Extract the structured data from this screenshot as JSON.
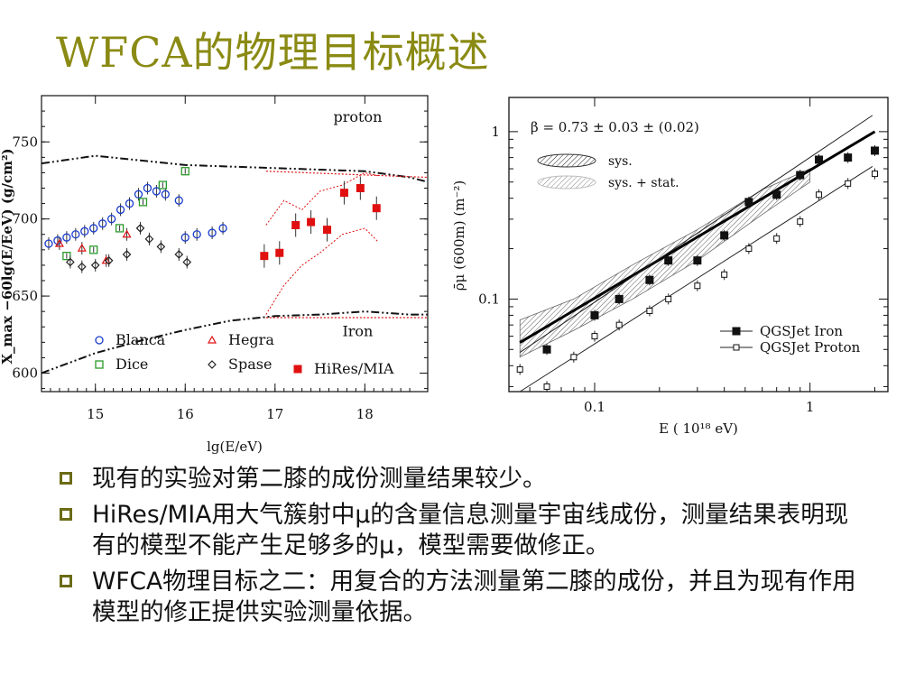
{
  "slide": {
    "title": "WFCA的物理目标概述"
  },
  "bullets": [
    {
      "text": "现有的实验对第二膝的成份测量结果较少。"
    },
    {
      "text": "HiRes/MIA用大气簇射中μ的含量信息测量宇宙线成份，测量结果表明现有的模型不能产生足够多的μ，模型需要做修正。"
    },
    {
      "text": "WFCA物理目标之二：用复合的方法测量第二膝的成份，并且为现有作用模型的修正提供实验测量依据。"
    }
  ],
  "colors": {
    "title": "#8a8a14",
    "bullet_box": "#6b6b16",
    "blue": "#1a3ccc",
    "green": "#2a9a2a",
    "red": "#e01010"
  },
  "chart_data": [
    {
      "type": "scatter",
      "xlabel": "lg(E/eV)",
      "ylabel": "X_max −60lg(E/EeV)  (g/cm²)",
      "xlim": [
        14.4,
        18.7
      ],
      "ylim": [
        588,
        780
      ],
      "xticks": [
        "15",
        "16",
        "17",
        "18"
      ],
      "yticks": [
        "600",
        "650",
        "700",
        "750"
      ],
      "annotations": [
        "proton",
        "Iron"
      ],
      "legend": [
        {
          "name": "Blanca",
          "marker": "circle",
          "color": "#1a3ccc"
        },
        {
          "name": "Hegra",
          "marker": "triangle",
          "color": "#e01010"
        },
        {
          "name": "Dice",
          "marker": "square",
          "color": "#2a9a2a"
        },
        {
          "name": "Spase",
          "marker": "diamond",
          "color": "#222222"
        },
        {
          "name": "HiRes/MIA",
          "marker": "filled-square",
          "color": "#e01010"
        }
      ],
      "lines": [
        {
          "name": "proton",
          "x": [
            14.4,
            15.0,
            15.5,
            16.0,
            16.5,
            17.0,
            17.5,
            18.0,
            18.5,
            18.7
          ],
          "y": [
            736,
            741,
            738,
            735,
            734,
            733,
            732,
            731,
            727,
            724
          ]
        },
        {
          "name": "Iron",
          "x": [
            14.4,
            15.0,
            15.5,
            16.0,
            16.5,
            17.0,
            17.5,
            18.0,
            18.5,
            18.7
          ],
          "y": [
            600,
            613,
            621,
            628,
            634,
            637,
            638,
            640,
            638,
            638
          ]
        }
      ],
      "series": [
        {
          "name": "Blanca",
          "x": [
            14.48,
            14.58,
            14.68,
            14.78,
            14.88,
            14.98,
            15.08,
            15.18,
            15.28,
            15.38,
            15.48,
            15.58,
            15.68,
            15.78,
            15.93,
            16.0,
            16.13,
            16.3,
            16.42
          ],
          "y": [
            684,
            686,
            688,
            690,
            692,
            694,
            697,
            700,
            706,
            710,
            716,
            720,
            718,
            716,
            712,
            688,
            690,
            691,
            694
          ]
        },
        {
          "name": "Hegra",
          "x": [
            14.6,
            14.85,
            15.12,
            15.35
          ],
          "y": [
            684,
            681,
            673,
            690
          ]
        },
        {
          "name": "Dice",
          "x": [
            14.68,
            14.98,
            15.27,
            15.53,
            15.75,
            16.0
          ],
          "y": [
            676,
            680,
            694,
            711,
            722,
            731
          ]
        },
        {
          "name": "Spase",
          "x": [
            14.72,
            14.85,
            15.0,
            15.15,
            15.35,
            15.5,
            15.6,
            15.73,
            15.93,
            16.02
          ],
          "y": [
            672,
            669,
            670,
            673,
            677,
            694,
            687,
            682,
            677,
            672
          ]
        },
        {
          "name": "HiRes/MIA",
          "x": [
            16.88,
            17.05,
            17.23,
            17.4,
            17.58,
            17.77,
            17.95,
            18.13
          ],
          "y": [
            676,
            678,
            696,
            698,
            693,
            717,
            720,
            707
          ]
        }
      ]
    },
    {
      "type": "line",
      "log_x": true,
      "log_y": true,
      "xlabel": "E  ( 10¹⁸ eV)",
      "ylabel": "ρ̄μ (600m)  (m⁻²)",
      "xticks": [
        "0.1",
        "1"
      ],
      "yticks": [
        "0.1",
        "1"
      ],
      "xlim": [
        0.04,
        2.3
      ],
      "ylim": [
        0.028,
        1.6
      ],
      "annotations": [
        "β = 0.73   ± 0.03    ± (0.02)",
        "sys.",
        "sys. + stat."
      ],
      "legend": [
        {
          "name": "QGSJet Iron",
          "marker": "filled-square"
        },
        {
          "name": "QGSJet Proton",
          "marker": "open-square"
        }
      ],
      "series": [
        {
          "name": "QGSJet Iron",
          "x": [
            0.06,
            0.1,
            0.13,
            0.18,
            0.22,
            0.3,
            0.4,
            0.52,
            0.7,
            0.9,
            1.1,
            1.5,
            2.0
          ],
          "y": [
            0.05,
            0.08,
            0.1,
            0.13,
            0.17,
            0.17,
            0.24,
            0.38,
            0.42,
            0.55,
            0.68,
            0.7,
            0.77
          ]
        },
        {
          "name": "QGSJet Proton",
          "x": [
            0.045,
            0.06,
            0.08,
            0.1,
            0.13,
            0.18,
            0.22,
            0.3,
            0.4,
            0.52,
            0.7,
            0.9,
            1.1,
            1.5,
            2.0
          ],
          "y": [
            0.038,
            0.03,
            0.045,
            0.06,
            0.07,
            0.085,
            0.1,
            0.12,
            0.14,
            0.2,
            0.23,
            0.29,
            0.42,
            0.49,
            0.56
          ]
        }
      ],
      "fit": {
        "x": [
          0.045,
          2.0
        ],
        "y": [
          0.055,
          1.0
        ]
      }
    }
  ]
}
